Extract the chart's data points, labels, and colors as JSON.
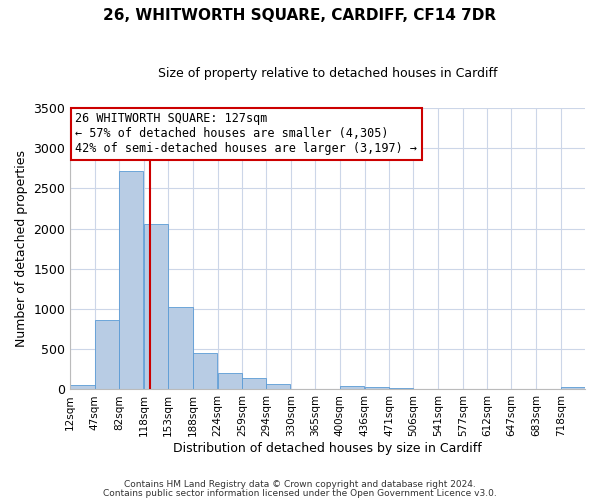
{
  "title": "26, WHITWORTH SQUARE, CARDIFF, CF14 7DR",
  "subtitle": "Size of property relative to detached houses in Cardiff",
  "xlabel": "Distribution of detached houses by size in Cardiff",
  "ylabel": "Number of detached properties",
  "bin_labels": [
    "12sqm",
    "47sqm",
    "82sqm",
    "118sqm",
    "153sqm",
    "188sqm",
    "224sqm",
    "259sqm",
    "294sqm",
    "330sqm",
    "365sqm",
    "400sqm",
    "436sqm",
    "471sqm",
    "506sqm",
    "541sqm",
    "577sqm",
    "612sqm",
    "647sqm",
    "683sqm",
    "718sqm"
  ],
  "bin_edges": [
    12,
    47,
    82,
    118,
    153,
    188,
    224,
    259,
    294,
    330,
    365,
    400,
    436,
    471,
    506,
    541,
    577,
    612,
    647,
    683,
    718
  ],
  "bar_heights": [
    60,
    860,
    2720,
    2060,
    1020,
    455,
    210,
    145,
    65,
    0,
    0,
    40,
    30,
    20,
    0,
    0,
    0,
    0,
    0,
    0,
    25
  ],
  "bar_color": "#b8cce4",
  "bar_edge_color": "#5b9bd5",
  "vline_x": 127,
  "vline_color": "#cc0000",
  "ylim": [
    0,
    3500
  ],
  "yticks": [
    0,
    500,
    1000,
    1500,
    2000,
    2500,
    3000,
    3500
  ],
  "annotation_title": "26 WHITWORTH SQUARE: 127sqm",
  "annotation_line1": "← 57% of detached houses are smaller (4,305)",
  "annotation_line2": "42% of semi-detached houses are larger (3,197) →",
  "annotation_box_color": "#cc0000",
  "footer1": "Contains HM Land Registry data © Crown copyright and database right 2024.",
  "footer2": "Contains public sector information licensed under the Open Government Licence v3.0.",
  "background_color": "#ffffff",
  "grid_color": "#ccd6e8"
}
